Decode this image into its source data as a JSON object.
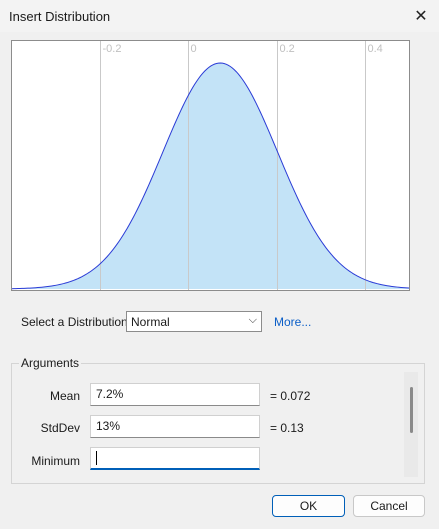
{
  "window": {
    "title": "Insert Distribution"
  },
  "icons": {
    "close": "close-icon",
    "dropdown": "chevron-down-icon"
  },
  "colors": {
    "curve_stroke": "#2a3bd6",
    "curve_fill": "#c3e3f7",
    "link": "#0b5ec7",
    "focus": "#005fb8"
  },
  "chart_data": {
    "type": "area",
    "distribution": "normal",
    "mean": 0.072,
    "stddev": 0.13,
    "xlim": [
      -0.4,
      0.5
    ],
    "tick_labels": [
      "-0.2",
      "0",
      "0.2",
      "0.4"
    ],
    "ticks": [
      -0.2,
      0,
      0.2,
      0.4
    ],
    "grid": true
  },
  "selector": {
    "label": "Select a Distribution:",
    "value": "Normal",
    "more_link": "More..."
  },
  "arguments": {
    "title": "Arguments",
    "rows": [
      {
        "label": "Mean",
        "value": "7.2%",
        "result": "= 0.072"
      },
      {
        "label": "StdDev",
        "value": "13%",
        "result": "= 0.13"
      },
      {
        "label": "Minimum",
        "value": "",
        "result": ""
      }
    ]
  },
  "buttons": {
    "ok": "OK",
    "cancel": "Cancel"
  }
}
